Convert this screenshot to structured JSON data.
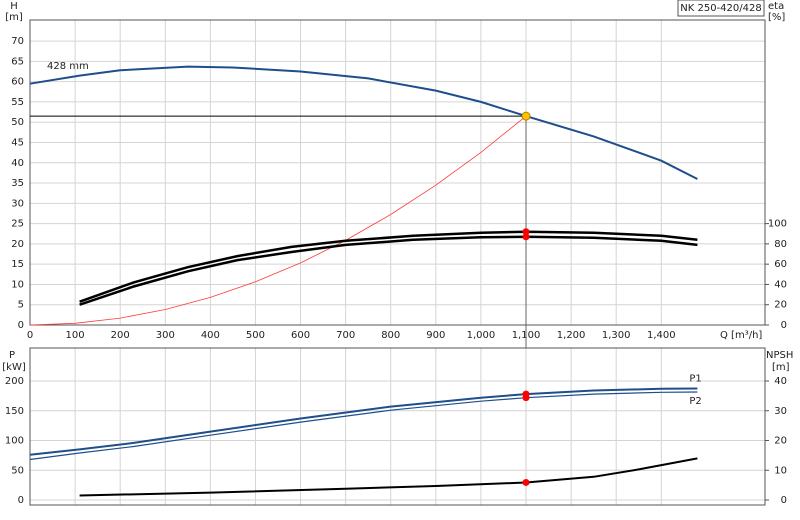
{
  "chart_data": [
    {
      "type": "line",
      "title": "NK 250-420/428",
      "annotation": "428 mm",
      "ylabel": "H",
      "yunit": "[m]",
      "y2label": "eta",
      "y2unit": "[%]",
      "xlabel": "Q [m³/h]",
      "xlim": [
        0,
        1630
      ],
      "xticks": [
        0,
        100,
        200,
        300,
        400,
        500,
        600,
        700,
        800,
        900,
        {
          "value": 1000,
          "label": "1,000"
        },
        {
          "value": 1100,
          "label": "1,100"
        },
        {
          "value": 1200,
          "label": "1,200"
        },
        {
          "value": 1300,
          "label": "1,300"
        },
        {
          "value": 1400,
          "label": "1,400"
        }
      ],
      "ylim": [
        0,
        75.2
      ],
      "yticks": [
        0,
        5,
        10,
        15,
        20,
        25,
        30,
        35,
        40,
        45,
        50,
        55,
        60,
        65,
        70
      ],
      "y2lim": [
        0,
        300.8
      ],
      "y2ticks": [
        0,
        20,
        40,
        60,
        80,
        100
      ],
      "grid": true,
      "series": [
        {
          "color": "#1f4e8c",
          "x": [
            0,
            110,
            200,
            350,
            450,
            600,
            750,
            900,
            1000,
            1100,
            1250,
            1400,
            1480
          ],
          "values": [
            59.5,
            61.5,
            62.8,
            63.7,
            63.5,
            62.5,
            60.8,
            57.8,
            55,
            51.5,
            46.5,
            40.5,
            36
          ]
        },
        {
          "color": "#ff3b3b",
          "x": [
            0,
            100,
            200,
            300,
            400,
            500,
            600,
            700,
            800,
            900,
            1000,
            1100
          ],
          "values": [
            0,
            0.43,
            1.7,
            3.83,
            6.81,
            10.64,
            15.32,
            20.85,
            27.24,
            34.47,
            42.56,
            51.5
          ]
        },
        {
          "color": "#000000",
          "axis": "y2",
          "x": [
            110,
            230,
            350,
            460,
            580,
            700,
            850,
            1000,
            1100,
            1250,
            1400,
            1480
          ],
          "values": [
            23,
            42,
            57,
            68,
            77,
            83,
            88,
            91,
            92,
            91,
            88,
            84
          ]
        },
        {
          "color": "#000000",
          "axis": "y2",
          "x": [
            110,
            230,
            350,
            460,
            580,
            700,
            850,
            1000,
            1100,
            1250,
            1400,
            1480
          ],
          "values": [
            20,
            38,
            53,
            64,
            72,
            79,
            84,
            86.5,
            87,
            86,
            83,
            79
          ]
        }
      ],
      "operating_point": {
        "x": 1100,
        "y": 51.5,
        "color": "#ffc000"
      },
      "markers": [
        {
          "x": 1100,
          "y": 92,
          "axis": "y2",
          "color": "#ff0000"
        },
        {
          "x": 1100,
          "y": 87,
          "axis": "y2",
          "color": "#ff0000"
        }
      ]
    },
    {
      "type": "line",
      "ylabel": "P",
      "yunit": "[kW]",
      "y2label": "NPSH",
      "y2unit": "[m]",
      "xlim": [
        0,
        1630
      ],
      "xticks": [
        0,
        100,
        200,
        300,
        400,
        500,
        600,
        700,
        800,
        900,
        1000,
        1100,
        1200,
        1300,
        1400
      ],
      "xtick_labels": false,
      "ylim": [
        -8.4,
        255.5
      ],
      "yticks": [
        0,
        50,
        100,
        150,
        200
      ],
      "y2lim": [
        -1.68,
        51.1
      ],
      "y2ticks": [
        0,
        10,
        20,
        30,
        40
      ],
      "grid": true,
      "series": [
        {
          "name": "P1",
          "color": "#1f4e8c",
          "x": [
            0,
            110,
            230,
            400,
            600,
            800,
            1000,
            1100,
            1250,
            1400,
            1480
          ],
          "values": [
            76,
            85,
            96,
            115,
            137,
            157,
            172,
            178,
            184,
            187,
            187.5
          ]
        },
        {
          "name": "P2",
          "color": "#1f4e8c",
          "x": [
            0,
            110,
            230,
            400,
            600,
            800,
            1000,
            1100,
            1250,
            1400,
            1480
          ],
          "values": [
            68,
            79,
            90,
            109,
            131,
            151,
            166,
            172,
            178,
            181,
            181.5
          ]
        },
        {
          "color": "#000000",
          "axis": "y2",
          "x": [
            110,
            400,
            700,
            900,
            1100,
            1250,
            1350,
            1480
          ],
          "values": [
            1.5,
            2.5,
            3.8,
            4.7,
            5.9,
            7.8,
            10.3,
            14
          ]
        }
      ],
      "markers": [
        {
          "x": 1100,
          "y": 178,
          "color": "#ff0000"
        },
        {
          "x": 1100,
          "y": 172,
          "color": "#ff0000"
        },
        {
          "x": 1100,
          "y": 5.9,
          "axis": "y2",
          "color": "#ff0000"
        }
      ]
    }
  ]
}
